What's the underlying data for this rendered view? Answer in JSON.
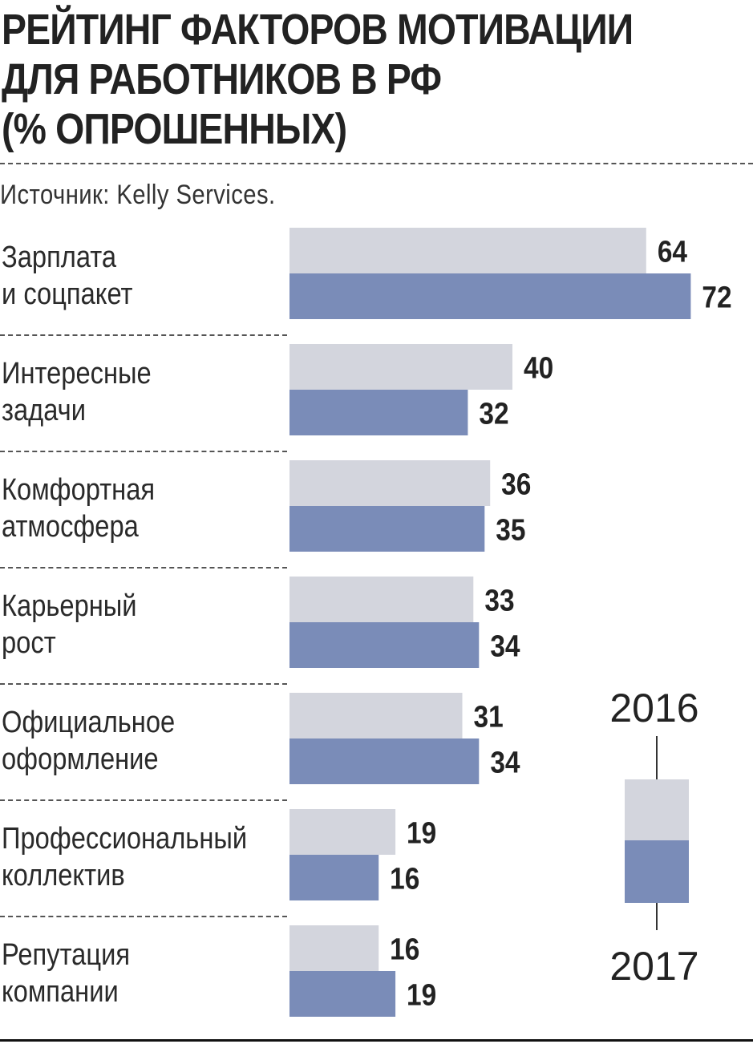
{
  "header": {
    "title_lines": [
      "Рейтинг факторов мотивации",
      "для работников в РФ",
      "(% опрошенных)"
    ],
    "source": "Источник: Kelly Services."
  },
  "colors": {
    "series_2016": "#d3d5dd",
    "series_2017": "#7a8cb8",
    "text": "#222222",
    "divider": "#555555"
  },
  "chart_data": {
    "type": "bar",
    "orientation": "horizontal",
    "categories": [
      [
        "Зарплата",
        "и соцпакет"
      ],
      [
        "Интересные",
        "задачи"
      ],
      [
        "Комфортная",
        "атмосфера"
      ],
      [
        "Карьерный",
        "рост"
      ],
      [
        "Официальное",
        "оформление"
      ],
      [
        "Профессиональный",
        "коллектив"
      ],
      [
        "Репутация",
        "компании"
      ]
    ],
    "series": [
      {
        "name": "2016",
        "values": [
          64,
          40,
          36,
          33,
          31,
          19,
          16
        ]
      },
      {
        "name": "2017",
        "values": [
          72,
          32,
          35,
          34,
          34,
          16,
          19
        ]
      }
    ],
    "title": "Рейтинг факторов мотивации для работников в РФ (% опрошенных)",
    "legend": {
      "position": "right",
      "labels": [
        "2016",
        "2017"
      ]
    }
  }
}
